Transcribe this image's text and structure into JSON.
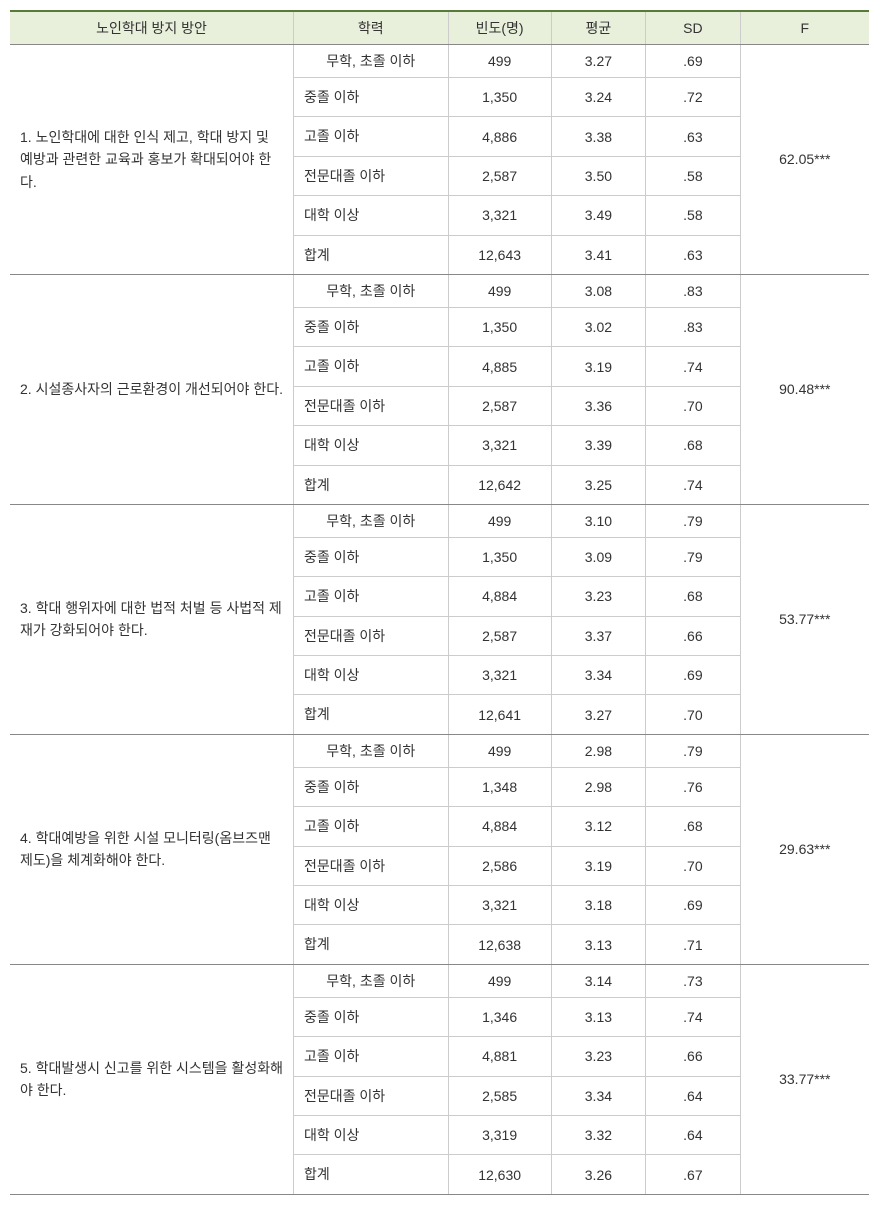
{
  "headers": {
    "item": "노인학대 방지 방안",
    "education": "학력",
    "frequency": "빈도(명)",
    "mean": "평균",
    "sd": "SD",
    "f": "F"
  },
  "eduLabels": {
    "none": "무학, 초졸 이하",
    "middle": "중졸 이하",
    "high": "고졸 이하",
    "college": "전문대졸 이하",
    "univ": "대학 이상",
    "total": "합계"
  },
  "groups": [
    {
      "label": "1. 노인학대에 대한 인식 제고, 학대 방지 및 예방과 관련한 교육과 홍보가 확대되어야 한다.",
      "f": "62.05***",
      "rows": [
        {
          "edu": "none",
          "freq": "499",
          "mean": "3.27",
          "sd": ".69"
        },
        {
          "edu": "middle",
          "freq": "1,350",
          "mean": "3.24",
          "sd": ".72"
        },
        {
          "edu": "high",
          "freq": "4,886",
          "mean": "3.38",
          "sd": ".63"
        },
        {
          "edu": "college",
          "freq": "2,587",
          "mean": "3.50",
          "sd": ".58"
        },
        {
          "edu": "univ",
          "freq": "3,321",
          "mean": "3.49",
          "sd": ".58"
        },
        {
          "edu": "total",
          "freq": "12,643",
          "mean": "3.41",
          "sd": ".63"
        }
      ]
    },
    {
      "label": "2. 시설종사자의 근로환경이 개선되어야 한다.",
      "f": "90.48***",
      "rows": [
        {
          "edu": "none",
          "freq": "499",
          "mean": "3.08",
          "sd": ".83"
        },
        {
          "edu": "middle",
          "freq": "1,350",
          "mean": "3.02",
          "sd": ".83"
        },
        {
          "edu": "high",
          "freq": "4,885",
          "mean": "3.19",
          "sd": ".74"
        },
        {
          "edu": "college",
          "freq": "2,587",
          "mean": "3.36",
          "sd": ".70"
        },
        {
          "edu": "univ",
          "freq": "3,321",
          "mean": "3.39",
          "sd": ".68"
        },
        {
          "edu": "total",
          "freq": "12,642",
          "mean": "3.25",
          "sd": ".74"
        }
      ]
    },
    {
      "label": "3. 학대 행위자에 대한 법적 처벌 등 사법적 제재가 강화되어야 한다.",
      "f": "53.77***",
      "rows": [
        {
          "edu": "none",
          "freq": "499",
          "mean": "3.10",
          "sd": ".79"
        },
        {
          "edu": "middle",
          "freq": "1,350",
          "mean": "3.09",
          "sd": ".79"
        },
        {
          "edu": "high",
          "freq": "4,884",
          "mean": "3.23",
          "sd": ".68"
        },
        {
          "edu": "college",
          "freq": "2,587",
          "mean": "3.37",
          "sd": ".66"
        },
        {
          "edu": "univ",
          "freq": "3,321",
          "mean": "3.34",
          "sd": ".69"
        },
        {
          "edu": "total",
          "freq": "12,641",
          "mean": "3.27",
          "sd": ".70"
        }
      ]
    },
    {
      "label": "4. 학대예방을 위한 시설 모니터링(옴브즈맨제도)을 체계화해야 한다.",
      "f": "29.63***",
      "rows": [
        {
          "edu": "none",
          "freq": "499",
          "mean": "2.98",
          "sd": ".79"
        },
        {
          "edu": "middle",
          "freq": "1,348",
          "mean": "2.98",
          "sd": ".76"
        },
        {
          "edu": "high",
          "freq": "4,884",
          "mean": "3.12",
          "sd": ".68"
        },
        {
          "edu": "college",
          "freq": "2,586",
          "mean": "3.19",
          "sd": ".70"
        },
        {
          "edu": "univ",
          "freq": "3,321",
          "mean": "3.18",
          "sd": ".69"
        },
        {
          "edu": "total",
          "freq": "12,638",
          "mean": "3.13",
          "sd": ".71"
        }
      ]
    },
    {
      "label": "5. 학대발생시 신고를 위한 시스템을 활성화해야 한다.",
      "f": "33.77***",
      "rows": [
        {
          "edu": "none",
          "freq": "499",
          "mean": "3.14",
          "sd": ".73"
        },
        {
          "edu": "middle",
          "freq": "1,346",
          "mean": "3.13",
          "sd": ".74"
        },
        {
          "edu": "high",
          "freq": "4,881",
          "mean": "3.23",
          "sd": ".66"
        },
        {
          "edu": "college",
          "freq": "2,585",
          "mean": "3.34",
          "sd": ".64"
        },
        {
          "edu": "univ",
          "freq": "3,319",
          "mean": "3.32",
          "sd": ".64"
        },
        {
          "edu": "total",
          "freq": "12,630",
          "mean": "3.26",
          "sd": ".67"
        }
      ]
    }
  ]
}
